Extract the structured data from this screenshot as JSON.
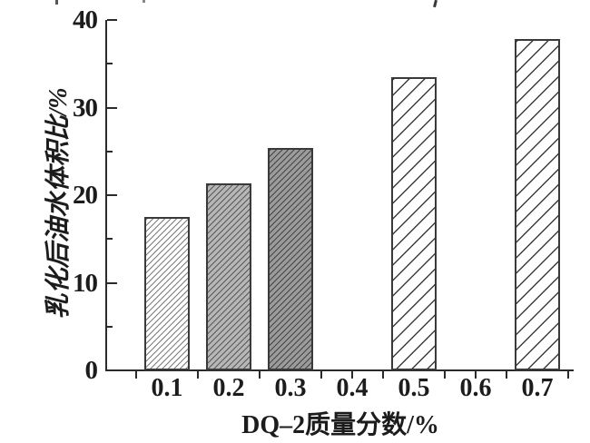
{
  "figure": {
    "background": "#ffffff",
    "text_color": "#1c1c1c",
    "axis_color": "#2b2b2b"
  },
  "chart_data": {
    "type": "bar",
    "title": "",
    "xlabel": "DQ–2质量分数/%",
    "ylabel": "乳化后油水体积比/%",
    "categories": [
      "0.1",
      "0.2",
      "0.3",
      "0.4",
      "0.5",
      "0.6",
      "0.7"
    ],
    "values": [
      17.5,
      21.3,
      25.4,
      null,
      33.5,
      null,
      37.8
    ],
    "ylim": [
      0,
      40
    ],
    "y_major_ticks": [
      0,
      10,
      20,
      30,
      40
    ],
    "y_minor_ticks": [
      5,
      15,
      25,
      35
    ],
    "grid": false,
    "legend_position": "none",
    "bar_styles": [
      {
        "fill": "#ffffff",
        "hatch": "dense-diagonal",
        "hatch_color": "#7d7d7d"
      },
      {
        "fill": "#b6b6b6",
        "hatch": "dense-diagonal",
        "hatch_color": "#5a5a5a"
      },
      {
        "fill": "#9b9b9b",
        "hatch": "dense-diagonal",
        "hatch_color": "#454545"
      },
      null,
      {
        "fill": "#ffffff",
        "hatch": "sparse-diagonal",
        "hatch_color": "#3c3c3c"
      },
      null,
      {
        "fill": "#ffffff",
        "hatch": "sparse-diagonal",
        "hatch_color": "#3c3c3c"
      }
    ]
  }
}
